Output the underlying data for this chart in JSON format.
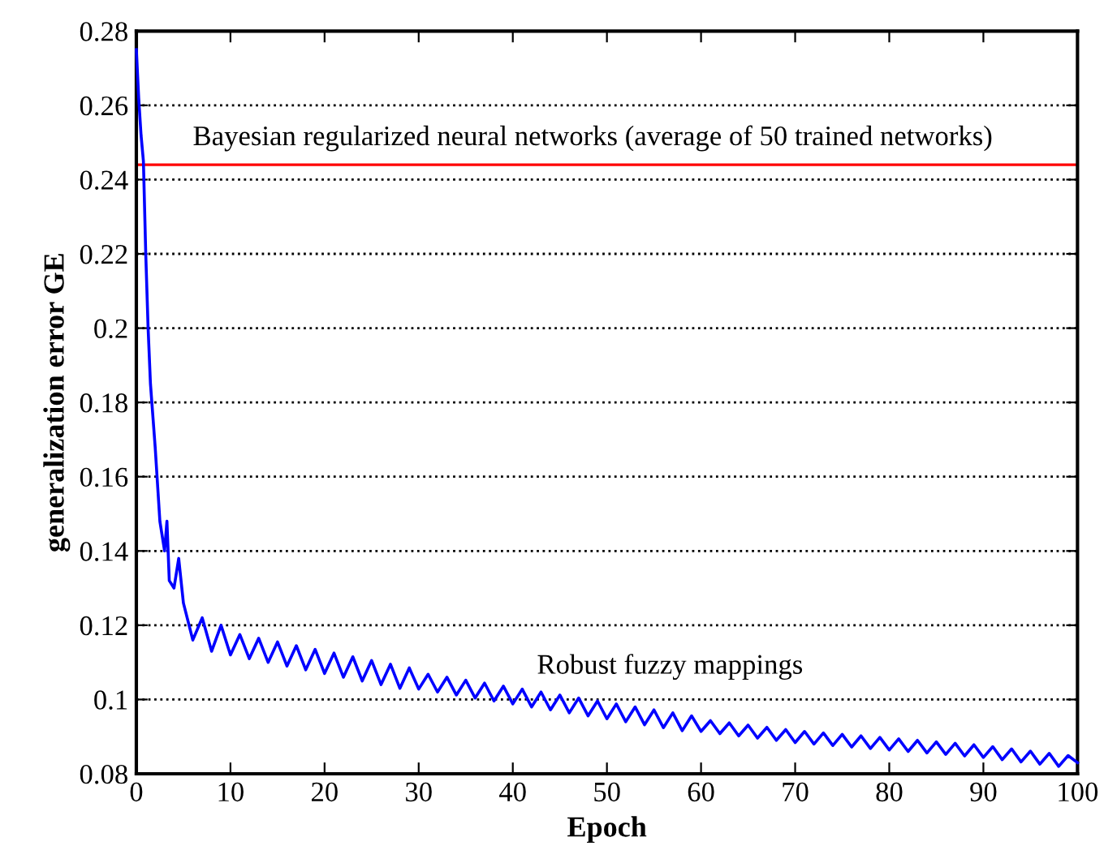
{
  "chart_data": {
    "type": "line",
    "xlabel": "Epoch",
    "ylabel": "generalization error GE",
    "xlim": [
      0,
      100
    ],
    "ylim": [
      0.08,
      0.28
    ],
    "xticks": [
      0,
      10,
      20,
      30,
      40,
      50,
      60,
      70,
      80,
      90,
      100
    ],
    "yticks": [
      0.08,
      0.1,
      0.12,
      0.14,
      0.16,
      0.18,
      0.2,
      0.22,
      0.24,
      0.26,
      0.28
    ],
    "grid": "y",
    "line_style": "solid",
    "marker": "none",
    "ref_lines": [
      {
        "axis": "y",
        "value": 0.244,
        "label": "Bayesian regularized neural networks (average of 50 trained networks)",
        "color": "#ff0000",
        "line_style": "solid"
      }
    ],
    "annotations": [
      "Robust fuzzy mappings"
    ],
    "series": [
      {
        "color": "#0000ff",
        "x": [
          0,
          0.25,
          0.5,
          0.75,
          1,
          1.25,
          1.5,
          2,
          2.5,
          3,
          3.25,
          3.5,
          4,
          4.5,
          5,
          6,
          7,
          8,
          9,
          10,
          11,
          12,
          13,
          14,
          15,
          16,
          17,
          18,
          19,
          20,
          21,
          22,
          23,
          24,
          25,
          26,
          27,
          28,
          29,
          30,
          31,
          32,
          33,
          34,
          35,
          36,
          37,
          38,
          39,
          40,
          41,
          42,
          43,
          44,
          45,
          46,
          47,
          48,
          49,
          50,
          51,
          52,
          53,
          54,
          55,
          56,
          57,
          58,
          59,
          60,
          61,
          62,
          63,
          64,
          65,
          66,
          67,
          68,
          69,
          70,
          71,
          72,
          73,
          74,
          75,
          76,
          77,
          78,
          79,
          80,
          81,
          82,
          83,
          84,
          85,
          86,
          87,
          88,
          89,
          90,
          91,
          92,
          93,
          94,
          95,
          96,
          97,
          98,
          99,
          100
        ],
        "values": [
          0.275,
          0.262,
          0.252,
          0.245,
          0.22,
          0.2,
          0.185,
          0.168,
          0.148,
          0.14,
          0.148,
          0.132,
          0.13,
          0.138,
          0.126,
          0.116,
          0.122,
          0.113,
          0.12,
          0.112,
          0.1175,
          0.111,
          0.1165,
          0.11,
          0.1155,
          0.109,
          0.1145,
          0.108,
          0.1135,
          0.107,
          0.1125,
          0.106,
          0.1115,
          0.105,
          0.1105,
          0.104,
          0.1095,
          0.103,
          0.1085,
          0.1028,
          0.1068,
          0.102,
          0.106,
          0.1012,
          0.1052,
          0.1004,
          0.1044,
          0.0996,
          0.1036,
          0.0988,
          0.1028,
          0.098,
          0.102,
          0.0972,
          0.1012,
          0.0964,
          0.1004,
          0.0956,
          0.0996,
          0.0948,
          0.0988,
          0.094,
          0.098,
          0.0932,
          0.0972,
          0.0924,
          0.0964,
          0.0916,
          0.0956,
          0.0914,
          0.0943,
          0.0908,
          0.0937,
          0.0902,
          0.0931,
          0.0896,
          0.0925,
          0.089,
          0.0919,
          0.0884,
          0.0914,
          0.088,
          0.091,
          0.0876,
          0.0906,
          0.0872,
          0.0902,
          0.0868,
          0.0898,
          0.0864,
          0.0894,
          0.086,
          0.089,
          0.0856,
          0.0886,
          0.0852,
          0.0882,
          0.0848,
          0.0878,
          0.0844,
          0.0873,
          0.0838,
          0.0867,
          0.0832,
          0.0861,
          0.0826,
          0.0855,
          0.082,
          0.0849,
          0.083
        ]
      }
    ]
  }
}
